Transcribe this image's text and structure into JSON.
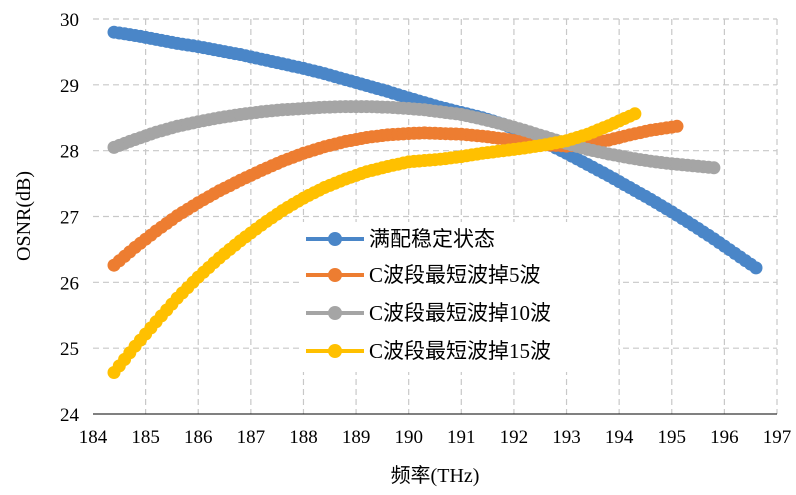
{
  "chart_data": {
    "type": "scatter",
    "xlabel": "频率(THz)",
    "ylabel": "OSNR(dB)",
    "xlim": [
      184,
      197
    ],
    "ylim": [
      24,
      30
    ],
    "x_ticks": [
      "184",
      "185",
      "186",
      "187",
      "188",
      "189",
      "190",
      "191",
      "192",
      "193",
      "194",
      "195",
      "196",
      "197"
    ],
    "y_ticks": [
      "24",
      "25",
      "26",
      "27",
      "28",
      "29",
      "30"
    ],
    "grid": true,
    "legend_position": "center",
    "series": [
      {
        "name": "满配稳定状态",
        "color": "#4a86c8",
        "x": [
          184.4,
          184.8,
          185.2,
          185.6,
          186.0,
          186.4,
          186.8,
          187.2,
          187.6,
          188.0,
          188.4,
          188.8,
          189.2,
          189.6,
          190.0,
          190.3,
          190.6,
          191.0,
          191.4,
          191.8,
          192.2,
          192.6,
          193.0,
          193.4,
          193.8,
          194.2,
          194.6,
          195.0,
          195.4,
          195.8,
          196.2,
          196.6
        ],
        "values": [
          29.8,
          29.75,
          29.69,
          29.63,
          29.58,
          29.52,
          29.46,
          29.39,
          29.32,
          29.25,
          29.17,
          29.08,
          28.99,
          28.9,
          28.8,
          28.73,
          28.66,
          28.58,
          28.5,
          28.4,
          28.27,
          28.12,
          27.96,
          27.79,
          27.62,
          27.44,
          27.26,
          27.07,
          26.87,
          26.66,
          26.44,
          26.22
        ]
      },
      {
        "name": "C波段最短波掉5波",
        "color": "#ed7d31",
        "x": [
          184.4,
          184.8,
          185.2,
          185.6,
          186.0,
          186.4,
          186.8,
          187.2,
          187.6,
          188.0,
          188.4,
          188.8,
          189.2,
          189.6,
          190.0,
          190.3,
          190.6,
          191.0,
          191.4,
          191.8,
          192.2,
          192.6,
          193.0,
          193.4,
          193.8,
          194.2,
          194.6,
          195.1
        ],
        "values": [
          26.26,
          26.53,
          26.78,
          27.01,
          27.21,
          27.39,
          27.55,
          27.7,
          27.84,
          27.96,
          28.06,
          28.14,
          28.2,
          28.24,
          28.26,
          28.27,
          28.26,
          28.25,
          28.22,
          28.18,
          28.13,
          28.09,
          28.07,
          28.1,
          28.16,
          28.24,
          28.31,
          28.37
        ]
      },
      {
        "name": "C波段最短波掉10波",
        "color": "#a5a5a5",
        "x": [
          184.4,
          184.8,
          185.2,
          185.6,
          186.0,
          186.4,
          186.8,
          187.2,
          187.6,
          188.0,
          188.4,
          188.8,
          189.2,
          189.6,
          190.0,
          190.3,
          190.6,
          191.0,
          191.4,
          191.8,
          192.2,
          192.6,
          193.0,
          193.4,
          193.8,
          194.2,
          194.6,
          195.0,
          195.4,
          195.8
        ],
        "values": [
          28.05,
          28.17,
          28.28,
          28.37,
          28.44,
          28.5,
          28.55,
          28.59,
          28.62,
          28.64,
          28.66,
          28.67,
          28.67,
          28.66,
          28.64,
          28.62,
          28.59,
          28.55,
          28.48,
          28.4,
          28.31,
          28.21,
          28.11,
          28.02,
          27.95,
          27.89,
          27.84,
          27.8,
          27.77,
          27.74
        ]
      },
      {
        "name": "C波段最短波掉15波",
        "color": "#ffc000",
        "x": [
          184.4,
          184.8,
          185.2,
          185.6,
          186.0,
          186.4,
          186.8,
          187.2,
          187.6,
          188.0,
          188.4,
          188.8,
          189.2,
          189.6,
          190.0,
          190.3,
          190.6,
          191.0,
          191.4,
          191.8,
          192.2,
          192.6,
          193.0,
          193.4,
          193.8,
          194.3
        ],
        "values": [
          24.63,
          25.03,
          25.4,
          25.76,
          26.08,
          26.37,
          26.63,
          26.87,
          27.09,
          27.28,
          27.44,
          27.57,
          27.68,
          27.76,
          27.83,
          27.85,
          27.87,
          27.91,
          27.96,
          28.0,
          28.04,
          28.09,
          28.15,
          28.25,
          28.38,
          28.56
        ]
      }
    ]
  }
}
